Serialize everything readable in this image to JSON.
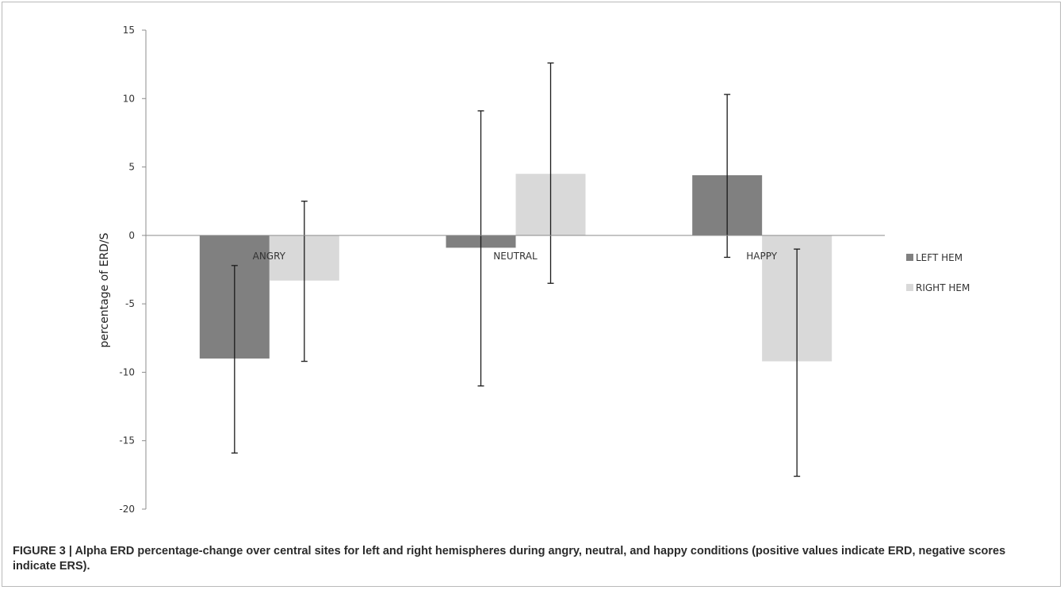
{
  "caption": "FIGURE 3 | Alpha ERD percentage-change over central sites for left and right hemispheres during angry, neutral, and happy conditions (positive values indicate ERD, negative scores indicate ERS).",
  "chart_data": {
    "type": "bar",
    "title": "",
    "xlabel": "",
    "ylabel": "percentage of ERD/S",
    "categories": [
      "ANGRY",
      "NEUTRAL",
      "HAPPY"
    ],
    "ylim": [
      -20,
      15
    ],
    "yticks": [
      15,
      10,
      5,
      0,
      -5,
      -10,
      -15,
      -20
    ],
    "grid": false,
    "legend_position": "right",
    "error_bars": true,
    "series": [
      {
        "name": "LEFT HEM",
        "color": "#808080",
        "values": [
          -9.0,
          -0.9,
          4.4
        ],
        "error_upper": [
          -2.2,
          9.1,
          10.3
        ],
        "error_lower": [
          -15.9,
          -11.0,
          -1.6
        ]
      },
      {
        "name": "RIGHT HEM",
        "color": "#d9d9d9",
        "values": [
          -3.3,
          4.5,
          -9.2
        ],
        "error_upper": [
          2.5,
          12.6,
          -1.0
        ],
        "error_lower": [
          -9.2,
          -3.5,
          -17.6
        ]
      }
    ]
  }
}
